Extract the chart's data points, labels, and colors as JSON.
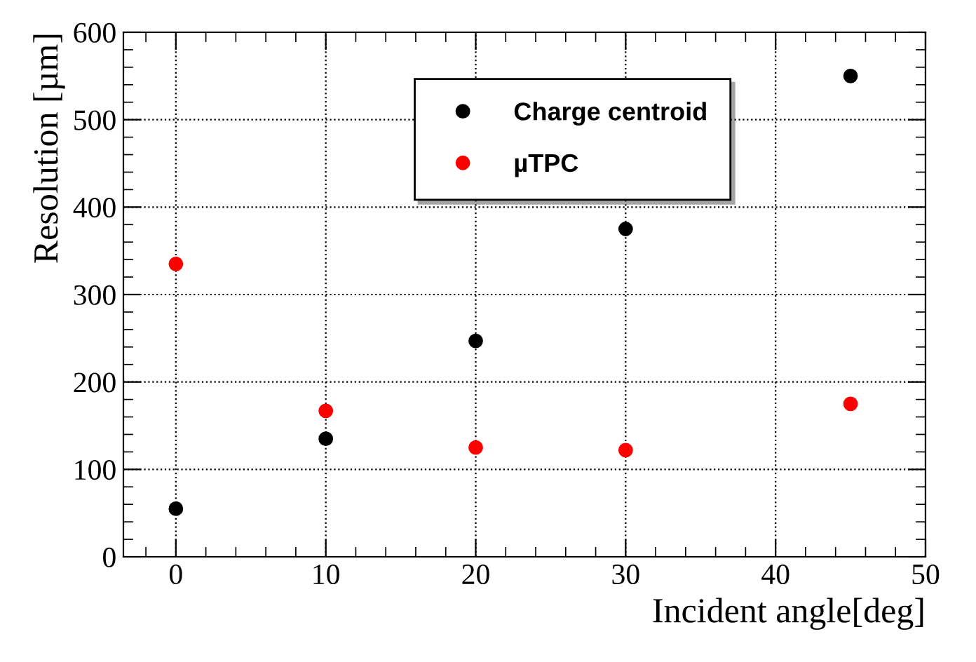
{
  "chart_data": {
    "type": "scatter",
    "xlabel": "Incident angle[deg]",
    "ylabel": "Resolution [µm]",
    "x": [
      0,
      10,
      20,
      30,
      45
    ],
    "series": [
      {
        "name": "Charge centroid",
        "color": "#000000",
        "values": [
          55,
          135,
          247,
          375,
          550
        ]
      },
      {
        "name": "µTPC",
        "color": "#ff0000",
        "values": [
          335,
          167,
          125,
          122,
          175
        ]
      }
    ],
    "xlim": [
      -3.5,
      50
    ],
    "xticks": [
      0,
      10,
      20,
      30,
      40,
      50
    ],
    "ylim": [
      0,
      600
    ],
    "yticks": [
      0,
      100,
      200,
      300,
      400,
      500,
      600
    ],
    "grid": true,
    "legend": "top",
    "marker": "circle"
  }
}
